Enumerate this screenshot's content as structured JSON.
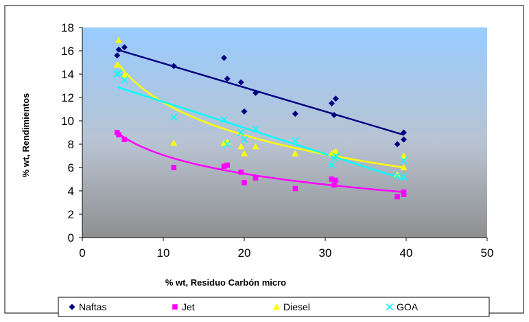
{
  "chart_data": {
    "type": "scatter",
    "title": "",
    "xlabel": "% wt, Residuo Carbón micro",
    "ylabel": "% wt, Rendimientos",
    "xlim": [
      0,
      50
    ],
    "ylim": [
      0,
      18
    ],
    "xticks": [
      "0",
      "10",
      "20",
      "30",
      "40",
      "50"
    ],
    "yticks": [
      "0",
      "2",
      "4",
      "6",
      "8",
      "10",
      "12",
      "14",
      "16",
      "18"
    ],
    "grid": false,
    "plot_background": "gradient light blue to gray",
    "legend_position": "bottom",
    "series": [
      {
        "name": "Naftas",
        "marker": "diamond",
        "color": "#000080",
        "points": [
          [
            4.3,
            15.6
          ],
          [
            4.5,
            16.1
          ],
          [
            5.2,
            16.3
          ],
          [
            11.3,
            14.7
          ],
          [
            17.5,
            15.4
          ],
          [
            17.9,
            13.6
          ],
          [
            19.6,
            13.3
          ],
          [
            20.0,
            10.8
          ],
          [
            21.4,
            12.4
          ],
          [
            26.3,
            10.6
          ],
          [
            30.8,
            11.5
          ],
          [
            31.1,
            10.5
          ],
          [
            31.3,
            11.9
          ],
          [
            38.9,
            8.0
          ],
          [
            39.7,
            9.0
          ],
          [
            39.7,
            8.4
          ]
        ],
        "trendline": {
          "kind": "linear",
          "from": [
            4.3,
            16.1
          ],
          "to": [
            39.7,
            8.8
          ],
          "color": "#000080"
        }
      },
      {
        "name": "Jet",
        "marker": "square",
        "color": "#ff00ff",
        "points": [
          [
            4.3,
            9.0
          ],
          [
            4.5,
            8.8
          ],
          [
            5.2,
            8.4
          ],
          [
            11.3,
            6.0
          ],
          [
            17.5,
            6.1
          ],
          [
            17.9,
            6.2
          ],
          [
            19.6,
            5.6
          ],
          [
            20.0,
            4.7
          ],
          [
            21.4,
            5.1
          ],
          [
            26.3,
            4.2
          ],
          [
            30.8,
            5.0
          ],
          [
            31.1,
            4.5
          ],
          [
            31.3,
            4.9
          ],
          [
            38.9,
            3.5
          ],
          [
            39.7,
            3.9
          ],
          [
            39.7,
            3.7
          ]
        ],
        "trendline": {
          "kind": "logarithmic",
          "from": [
            4.3,
            9.0
          ],
          "to": [
            39.7,
            3.9
          ],
          "color": "#ff00ff"
        }
      },
      {
        "name": "Diesel",
        "marker": "triangle",
        "color": "#ffff00",
        "points": [
          [
            4.3,
            14.8
          ],
          [
            4.5,
            16.9
          ],
          [
            5.2,
            13.9
          ],
          [
            11.3,
            8.1
          ],
          [
            17.5,
            8.1
          ],
          [
            17.9,
            8.2
          ],
          [
            19.6,
            7.8
          ],
          [
            20.0,
            7.2
          ],
          [
            21.4,
            7.8
          ],
          [
            26.3,
            7.2
          ],
          [
            30.8,
            7.2
          ],
          [
            31.1,
            7.3
          ],
          [
            31.3,
            7.4
          ],
          [
            38.9,
            5.4
          ],
          [
            39.7,
            7.0
          ],
          [
            39.7,
            6.0
          ]
        ],
        "trendline": {
          "kind": "logarithmic",
          "from": [
            4.3,
            15.0
          ],
          "to": [
            39.7,
            6.0
          ],
          "color": "#ffff00"
        }
      },
      {
        "name": "GOA",
        "marker": "x",
        "color": "#00ffff",
        "points": [
          [
            4.3,
            14.0
          ],
          [
            4.5,
            14.1
          ],
          [
            5.2,
            13.5
          ],
          [
            11.3,
            10.3
          ],
          [
            17.5,
            10.1
          ],
          [
            17.9,
            8.0
          ],
          [
            19.6,
            9.0
          ],
          [
            20.0,
            8.4
          ],
          [
            21.4,
            9.3
          ],
          [
            26.3,
            8.3
          ],
          [
            30.8,
            6.2
          ],
          [
            31.1,
            6.8
          ],
          [
            31.3,
            7.0
          ],
          [
            38.9,
            5.3
          ],
          [
            39.7,
            6.6
          ],
          [
            39.7,
            5.2
          ]
        ],
        "trendline": {
          "kind": "linear",
          "from": [
            4.3,
            12.9
          ],
          "to": [
            39.7,
            5.0
          ],
          "color": "#00ffff"
        }
      }
    ]
  }
}
